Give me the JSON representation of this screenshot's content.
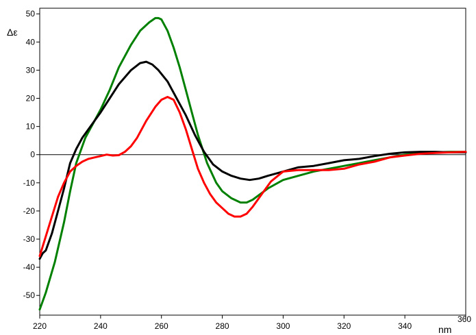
{
  "chart_data": {
    "type": "line",
    "title": "",
    "xlabel": "nm",
    "ylabel": "Δε",
    "xlim": [
      220,
      360
    ],
    "ylim": [
      -57,
      52
    ],
    "x_ticks": [
      220,
      240,
      260,
      280,
      300,
      320,
      340,
      360
    ],
    "y_ticks": [
      50,
      40,
      30,
      20,
      10,
      0,
      -10,
      -20,
      -30,
      -40,
      -50
    ],
    "grid": false,
    "legend": "none",
    "zero_line": true,
    "series": [
      {
        "color": "#008000",
        "x": [
          220,
          222,
          225,
          228,
          230,
          232,
          235,
          238,
          240,
          243,
          246,
          250,
          253,
          256,
          258,
          259,
          260,
          262,
          264,
          266,
          268,
          270,
          272,
          275,
          278,
          280,
          283,
          286,
          288,
          290,
          295,
          300,
          305,
          310,
          315,
          320,
          325,
          330,
          335,
          340,
          345,
          350,
          355,
          360
        ],
        "y": [
          -55,
          -49,
          -38,
          -24,
          -13,
          -3,
          6,
          12,
          16,
          23,
          31,
          39,
          44,
          47,
          48.5,
          48.5,
          48,
          44,
          38,
          31,
          23,
          15,
          7,
          -3,
          -10,
          -13,
          -15.5,
          -17,
          -17,
          -16,
          -12,
          -9,
          -7.5,
          -6,
          -5,
          -4,
          -3,
          -2,
          -1,
          0,
          0.5,
          0.8,
          1,
          1
        ]
      },
      {
        "color": "#000000",
        "x": [
          220,
          221,
          222,
          224,
          226,
          228,
          230,
          232,
          234,
          236,
          238,
          240,
          243,
          246,
          250,
          253,
          255,
          257,
          259,
          262,
          265,
          268,
          271,
          274,
          277,
          280,
          283,
          286,
          289,
          292,
          295,
          300,
          305,
          310,
          315,
          320,
          325,
          330,
          335,
          340,
          345,
          350,
          355,
          360
        ],
        "y": [
          -37,
          -35,
          -34,
          -28,
          -20,
          -12,
          -3,
          2,
          6,
          9,
          12,
          15,
          20,
          25,
          30,
          32.5,
          33,
          32,
          30,
          26,
          20,
          14,
          7,
          1,
          -3.5,
          -6,
          -7.5,
          -8.5,
          -9,
          -8.5,
          -7.5,
          -6,
          -4.5,
          -4,
          -3,
          -2,
          -1.5,
          -0.5,
          0.3,
          0.8,
          1,
          1,
          0.8,
          0.8
        ]
      },
      {
        "color": "#ff0000",
        "x": [
          220,
          222,
          224,
          226,
          228,
          230,
          232,
          234,
          236,
          238,
          240,
          242,
          244,
          246,
          248,
          250,
          252,
          255,
          258,
          260,
          262,
          264,
          266,
          268,
          270,
          272,
          274,
          276,
          278,
          280,
          282,
          284,
          286,
          288,
          290,
          293,
          296,
          300,
          305,
          310,
          315,
          320,
          325,
          330,
          335,
          340,
          345,
          350,
          355,
          360
        ],
        "y": [
          -36,
          -29,
          -22,
          -15,
          -10,
          -6,
          -4,
          -2.5,
          -1.5,
          -1,
          -0.5,
          0,
          -0.3,
          -0.2,
          1,
          3,
          6,
          12,
          17,
          19.5,
          20.5,
          19.5,
          15,
          9,
          2,
          -5,
          -10,
          -14,
          -17,
          -19,
          -21,
          -22,
          -22,
          -21,
          -18.5,
          -14,
          -9.5,
          -6,
          -5.5,
          -5.5,
          -5.5,
          -5,
          -3.5,
          -2.5,
          -1,
          -0.3,
          0.3,
          0.6,
          0.8,
          1
        ]
      }
    ]
  }
}
